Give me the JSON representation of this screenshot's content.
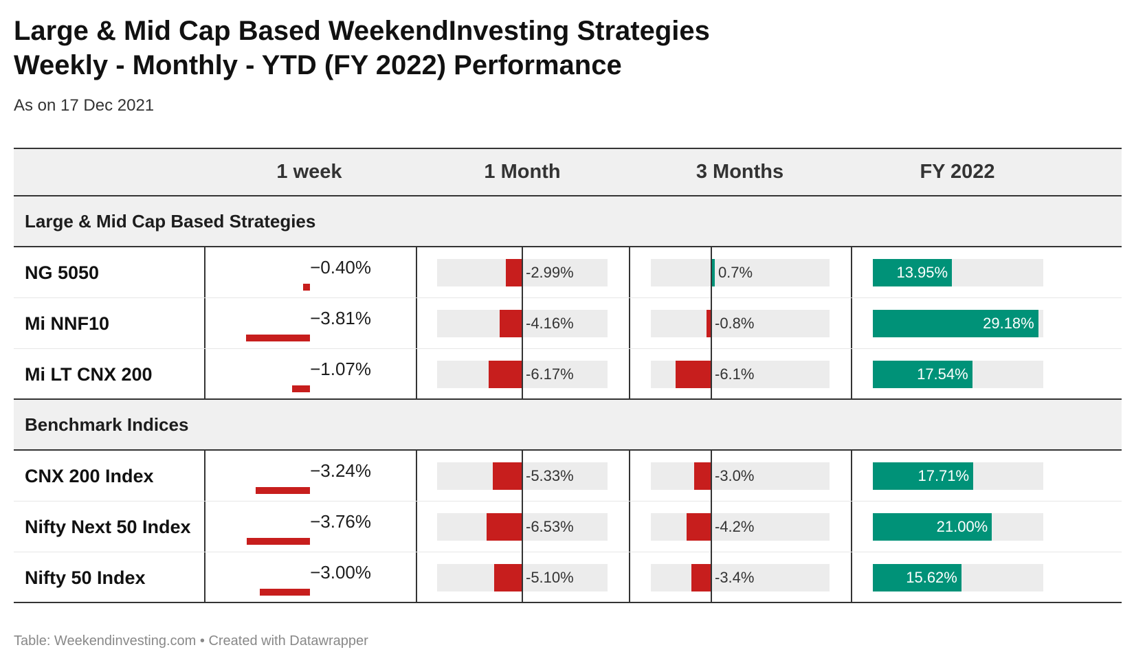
{
  "title_line1": "Large & Mid Cap Based WeekendInvesting Strategies",
  "title_line2": "Weekly - Monthly - YTD (FY 2022) Performance",
  "subtitle": "As on 17 Dec 2021",
  "footer": "Table: Weekendinvesting.com • Created with Datawrapper",
  "colors": {
    "negative": "#c71e1d",
    "positive": "#009278",
    "bar_background": "#ececec"
  },
  "chart_data": {
    "type": "table",
    "columns": [
      "",
      "1 week",
      "1 Month",
      "3 Months",
      "FY 2022"
    ],
    "groups": [
      {
        "name": "Large & Mid Cap Based Strategies",
        "rows": [
          {
            "name": "NG 5050",
            "week": -0.4,
            "week_label": "−0.40%",
            "month": -2.99,
            "month_label": "-2.99%",
            "three_months": 0.7,
            "three_months_label": "0.7%",
            "fy": 13.95,
            "fy_label": "13.95%"
          },
          {
            "name": "Mi NNF10",
            "week": -3.81,
            "week_label": "−3.81%",
            "month": -4.16,
            "month_label": "-4.16%",
            "three_months": -0.8,
            "three_months_label": "-0.8%",
            "fy": 29.18,
            "fy_label": "29.18%"
          },
          {
            "name": "Mi LT CNX 200",
            "week": -1.07,
            "week_label": "−1.07%",
            "month": -6.17,
            "month_label": "-6.17%",
            "three_months": -6.1,
            "three_months_label": "-6.1%",
            "fy": 17.54,
            "fy_label": "17.54%"
          }
        ]
      },
      {
        "name": "Benchmark Indices",
        "rows": [
          {
            "name": "CNX 200 Index",
            "week": -3.24,
            "week_label": "−3.24%",
            "month": -5.33,
            "month_label": "-5.33%",
            "three_months": -3.0,
            "three_months_label": "-3.0%",
            "fy": 17.71,
            "fy_label": "17.71%"
          },
          {
            "name": "Nifty Next 50 Index",
            "week": -3.76,
            "week_label": "−3.76%",
            "month": -6.53,
            "month_label": "-6.53%",
            "three_months": -4.2,
            "three_months_label": "-4.2%",
            "fy": 21.0,
            "fy_label": "21.00%"
          },
          {
            "name": "Nifty 50 Index",
            "week": -3.0,
            "week_label": "−3.00%",
            "month": -5.1,
            "month_label": "-5.10%",
            "three_months": -3.4,
            "three_months_label": "-3.4%",
            "fy": 15.62,
            "fy_label": "15.62%"
          }
        ]
      }
    ]
  }
}
